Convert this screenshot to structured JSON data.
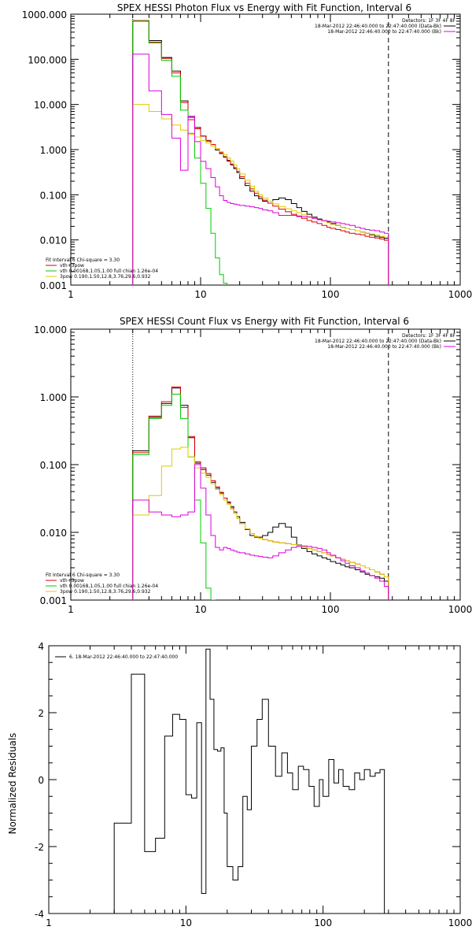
{
  "chart_data": [
    {
      "type": "line",
      "title": "SPEX HESSI Photon Flux vs Energy with Fit Function, Interval 6",
      "xlabel": "",
      "ylabel": "",
      "xscale": "log",
      "yscale": "log",
      "xlim": [
        1,
        1000
      ],
      "ylim": [
        0.001,
        1000
      ],
      "xtick_labels": [
        "1",
        "10",
        "100",
        "1000"
      ],
      "ytick_labels": [
        "0.001",
        "0.010",
        "0.100",
        "1.000",
        "10.000",
        "100.000",
        "1000.000"
      ],
      "legend_right": {
        "placement": "top-right",
        "header": "Detectors: 1F 3F 4F 8F",
        "lines": [
          {
            "text": "18-Mar-2012 22:46:40.000 to 22:47:40.000 (Data-Bk)",
            "color": "#000000"
          },
          {
            "text": "18-Mar-2012 22:46:40.000 to 22:47:40.000 (Bk)",
            "color": "#dd00dd"
          }
        ]
      },
      "legend_left": {
        "placement": "bottom-left",
        "header": "Fit Interval 6    Chi-square = 3.30",
        "lines": [
          {
            "text": "vth+3pow",
            "color": "#dd0000"
          },
          {
            "text": "vth 0.00168,1.05,1.00  full chian 1.26e-04",
            "color": "#00cc00"
          },
          {
            "text": "3pow 0.190,1.50,12.8,3.76,29.6,0.932",
            "color": "#ddcc00"
          }
        ]
      },
      "vlines": [
        {
          "x": 3,
          "style": "dotted"
        },
        {
          "x": 280,
          "style": "dashed"
        }
      ],
      "x_edges": [
        3.0,
        4.0,
        5.0,
        6.0,
        7.0,
        8.0,
        9.0,
        10.0,
        11.0,
        12.0,
        13.0,
        14.0,
        15.0,
        16.0,
        17.0,
        18.0,
        19.0,
        20.0,
        22.0,
        24.0,
        26.0,
        28.0,
        30.0,
        33.0,
        36.0,
        40.0,
        45.0,
        50.0,
        55.0,
        60.0,
        66.0,
        72.0,
        79.0,
        86.0,
        94.0,
        100.0,
        110.0,
        120.0,
        130.0,
        140.0,
        155.0,
        170.0,
        185.0,
        200.0,
        220.0,
        240.0,
        260.0,
        280.0
      ],
      "series": [
        {
          "name": "",
          "color": "#000000",
          "role": "data",
          "values": [
            700,
            260,
            110,
            55,
            12,
            5.2,
            3.1,
            2.0,
            1.55,
            1.2,
            0.98,
            0.82,
            0.68,
            0.56,
            0.46,
            0.38,
            0.31,
            0.23,
            0.16,
            0.12,
            0.095,
            0.082,
            0.072,
            0.072,
            0.078,
            0.085,
            0.078,
            0.064,
            0.052,
            0.043,
            0.037,
            0.032,
            0.029,
            0.027,
            0.025,
            0.023,
            0.021,
            0.019,
            0.018,
            0.017,
            0.016,
            0.015,
            0.014,
            0.013,
            0.012,
            0.0115,
            0.0108
          ]
        },
        {
          "name": "",
          "color": "#dd0000",
          "role": "model",
          "values": [
            720,
            240,
            105,
            50,
            11,
            4.6,
            2.9,
            2.0,
            1.6,
            1.3,
            1.05,
            0.86,
            0.7,
            0.58,
            0.48,
            0.4,
            0.33,
            0.25,
            0.18,
            0.135,
            0.108,
            0.09,
            0.076,
            0.065,
            0.056,
            0.048,
            0.042,
            0.037,
            0.033,
            0.03,
            0.027,
            0.025,
            0.023,
            0.021,
            0.019,
            0.018,
            0.017,
            0.016,
            0.015,
            0.014,
            0.0135,
            0.013,
            0.012,
            0.0115,
            0.011,
            0.0105,
            0.0098
          ]
        },
        {
          "name": "",
          "color": "#00cc00",
          "role": "vth",
          "values": [
            700,
            230,
            95,
            42,
            7.5,
            2.3,
            0.65,
            0.18,
            0.05,
            0.014,
            0.004,
            0.0017,
            0.0011
          ]
        },
        {
          "name": "",
          "color": "#ddcc00",
          "role": "3pow",
          "values": [
            10,
            7,
            4.8,
            3.5,
            2.7,
            2.2,
            1.9,
            1.6,
            1.4,
            1.2,
            1.05,
            0.9,
            0.78,
            0.66,
            0.56,
            0.46,
            0.38,
            0.29,
            0.21,
            0.155,
            0.12,
            0.1,
            0.085,
            0.072,
            0.063,
            0.055,
            0.049,
            0.044,
            0.04,
            0.036,
            0.033,
            0.03,
            0.028,
            0.026,
            0.024,
            0.022,
            0.021,
            0.019,
            0.018,
            0.017,
            0.016,
            0.015,
            0.014,
            0.0135,
            0.013,
            0.012,
            0.0115
          ]
        },
        {
          "name": "",
          "color": "#dd00dd",
          "role": "background",
          "values": [
            130,
            20,
            6,
            1.8,
            0.35,
            5.5,
            1.5,
            0.55,
            0.38,
            0.24,
            0.15,
            0.095,
            0.075,
            0.068,
            0.064,
            0.062,
            0.06,
            0.058,
            0.056,
            0.054,
            0.052,
            0.05,
            0.046,
            0.044,
            0.04,
            0.035,
            0.035,
            0.035,
            0.034,
            0.033,
            0.032,
            0.03,
            0.028,
            0.027,
            0.026,
            0.025,
            0.024,
            0.023,
            0.022,
            0.021,
            0.019,
            0.018,
            0.017,
            0.0165,
            0.016,
            0.015,
            0.014
          ]
        }
      ]
    },
    {
      "type": "line",
      "title": "SPEX HESSI Count Flux vs Energy with Fit Function, Interval 6",
      "xlabel": "",
      "ylabel": "",
      "xscale": "log",
      "yscale": "log",
      "xlim": [
        1,
        1000
      ],
      "ylim": [
        0.001,
        10
      ],
      "xtick_labels": [
        "1",
        "10",
        "100",
        "1000"
      ],
      "ytick_labels": [
        "0.001",
        "0.010",
        "0.100",
        "1.000",
        "10.000"
      ],
      "legend_right": {
        "placement": "top-right",
        "header": "Detectors: 1F 3F 4F 8F",
        "lines": [
          {
            "text": "18-Mar-2012 22:46:40.000 to 22:47:40.000 (Data-Bk)",
            "color": "#000000"
          },
          {
            "text": "18-Mar-2012 22:46:40.000 to 22:47:40.000 (Bk)",
            "color": "#dd00dd"
          }
        ]
      },
      "legend_left": {
        "placement": "bottom-left",
        "header": "Fit Interval 6    Chi-square = 3.30",
        "lines": [
          {
            "text": "vth+3pow",
            "color": "#dd0000"
          },
          {
            "text": "vth 0.00168,1.05,1.00  full chian 1.26e-04",
            "color": "#00cc00"
          },
          {
            "text": "3pow 0.190,1.50,12.8,3.76,29.6,0.932",
            "color": "#ddcc00"
          }
        ]
      },
      "vlines": [
        {
          "x": 3,
          "style": "dotted"
        },
        {
          "x": 280,
          "style": "dashed"
        }
      ],
      "x_edges": [
        3.0,
        4.0,
        5.0,
        6.0,
        7.0,
        8.0,
        9.0,
        10.0,
        11.0,
        12.0,
        13.0,
        14.0,
        15.0,
        16.0,
        17.0,
        18.0,
        19.0,
        20.0,
        22.0,
        24.0,
        26.0,
        28.0,
        30.0,
        33.0,
        36.0,
        40.0,
        45.0,
        50.0,
        55.0,
        60.0,
        66.0,
        72.0,
        79.0,
        86.0,
        94.0,
        100.0,
        110.0,
        120.0,
        130.0,
        140.0,
        155.0,
        170.0,
        185.0,
        200.0,
        220.0,
        240.0,
        260.0,
        280.0
      ],
      "series": [
        {
          "name": "",
          "color": "#000000",
          "role": "data",
          "values": [
            0.16,
            0.5,
            0.8,
            1.35,
            0.75,
            0.25,
            0.105,
            0.085,
            0.07,
            0.055,
            0.045,
            0.038,
            0.032,
            0.028,
            0.024,
            0.02,
            0.017,
            0.014,
            0.011,
            0.009,
            0.0085,
            0.0085,
            0.009,
            0.01,
            0.012,
            0.0135,
            0.012,
            0.0085,
            0.0065,
            0.0058,
            0.0052,
            0.0048,
            0.0045,
            0.0042,
            0.004,
            0.0037,
            0.0035,
            0.0033,
            0.0031,
            0.003,
            0.0028,
            0.0026,
            0.0024,
            0.0023,
            0.0022,
            0.0021,
            0.0019
          ]
        },
        {
          "name": "",
          "color": "#dd0000",
          "role": "model",
          "values": [
            0.15,
            0.52,
            0.85,
            1.4,
            0.7,
            0.26,
            0.11,
            0.09,
            0.074,
            0.058,
            0.047,
            0.039,
            0.032,
            0.027,
            0.023,
            0.019,
            0.016,
            0.0135,
            0.0112,
            0.0096,
            0.0087,
            0.0082,
            0.0078,
            0.0075,
            0.0072,
            0.007,
            0.0068,
            0.0066,
            0.0064,
            0.0061,
            0.0058,
            0.0055,
            0.0052,
            0.005,
            0.0047,
            0.0045,
            0.0042,
            0.004,
            0.0038,
            0.0036,
            0.0034,
            0.0032,
            0.003,
            0.0028,
            0.0026,
            0.0024,
            0.0022
          ]
        },
        {
          "name": "",
          "color": "#00cc00",
          "role": "vth",
          "values": [
            0.14,
            0.48,
            0.75,
            1.1,
            0.48,
            0.13,
            0.03,
            0.007,
            0.0015,
            0.0008
          ]
        },
        {
          "name": "",
          "color": "#ddcc00",
          "role": "3pow",
          "values": [
            0.018,
            0.035,
            0.095,
            0.17,
            0.18,
            0.13,
            0.09,
            0.075,
            0.065,
            0.052,
            0.043,
            0.036,
            0.03,
            0.026,
            0.022,
            0.019,
            0.016,
            0.0135,
            0.0112,
            0.0096,
            0.0087,
            0.0082,
            0.0078,
            0.0075,
            0.0072,
            0.007,
            0.0068,
            0.0066,
            0.0064,
            0.0061,
            0.0058,
            0.0055,
            0.0052,
            0.005,
            0.0047,
            0.0045,
            0.0042,
            0.004,
            0.0038,
            0.0036,
            0.0034,
            0.0032,
            0.003,
            0.0028,
            0.0026,
            0.0024,
            0.0022
          ]
        },
        {
          "name": "",
          "color": "#dd00dd",
          "role": "background",
          "values": [
            0.03,
            0.02,
            0.018,
            0.017,
            0.018,
            0.02,
            0.1,
            0.045,
            0.018,
            0.009,
            0.006,
            0.0055,
            0.006,
            0.0058,
            0.0055,
            0.0053,
            0.0051,
            0.005,
            0.0048,
            0.0046,
            0.0045,
            0.0044,
            0.0043,
            0.0042,
            0.0045,
            0.005,
            0.0055,
            0.006,
            0.0062,
            0.0063,
            0.0062,
            0.006,
            0.0058,
            0.0055,
            0.005,
            0.0046,
            0.0042,
            0.0038,
            0.0035,
            0.0032,
            0.003,
            0.0027,
            0.0025,
            0.0023,
            0.0021,
            0.0019,
            0.0016
          ]
        }
      ]
    },
    {
      "type": "line",
      "title": "",
      "xlabel": "",
      "ylabel": "Normalized Residuals",
      "xscale": "log",
      "yscale": "linear",
      "xlim": [
        1,
        1000
      ],
      "ylim": [
        -4,
        4
      ],
      "xtick_labels": [
        "1",
        "10",
        "100",
        "1000"
      ],
      "ytick_labels": [
        "-4",
        "-2",
        "0",
        "2",
        "4"
      ],
      "yticks": [
        -4,
        -2,
        0,
        2,
        4
      ],
      "legend_left": {
        "placement": "top-left",
        "header": "",
        "lines": [
          {
            "text": "6. 18-Mar-2012 22:46:40.000 to 22:47:40.000",
            "color": "#000000"
          }
        ]
      },
      "x_edges": [
        3.0,
        4.0,
        5.0,
        6.0,
        7.0,
        8.0,
        9.0,
        10.0,
        11.0,
        12.0,
        13.0,
        14.0,
        15.0,
        16.0,
        17.0,
        18.0,
        19.0,
        20.0,
        22.0,
        24.0,
        26.0,
        28.0,
        30.0,
        33.0,
        36.0,
        40.0,
        45.0,
        50.0,
        55.0,
        60.0,
        66.0,
        72.0,
        79.0,
        86.0,
        94.0,
        100.0,
        110.0,
        120.0,
        130.0,
        140.0,
        155.0,
        170.0,
        185.0,
        200.0,
        220.0,
        240.0,
        260.0,
        280.0
      ],
      "series": [
        {
          "name": "",
          "color": "#000000",
          "role": "residuals",
          "values": [
            -1.3,
            3.15,
            -2.15,
            -1.75,
            1.3,
            1.95,
            1.8,
            -0.45,
            -0.55,
            1.7,
            -3.4,
            3.9,
            2.4,
            0.9,
            0.85,
            0.95,
            -1.0,
            -2.6,
            -3.0,
            -2.6,
            -0.5,
            -0.9,
            1.0,
            1.8,
            2.4,
            1.0,
            0.1,
            0.8,
            0.2,
            -0.3,
            0.4,
            0.3,
            -0.2,
            -0.8,
            0.0,
            -0.5,
            0.6,
            -0.1,
            0.3,
            -0.2,
            -0.3,
            0.2,
            0.0,
            0.3,
            0.1,
            0.2,
            0.3
          ]
        }
      ]
    }
  ]
}
